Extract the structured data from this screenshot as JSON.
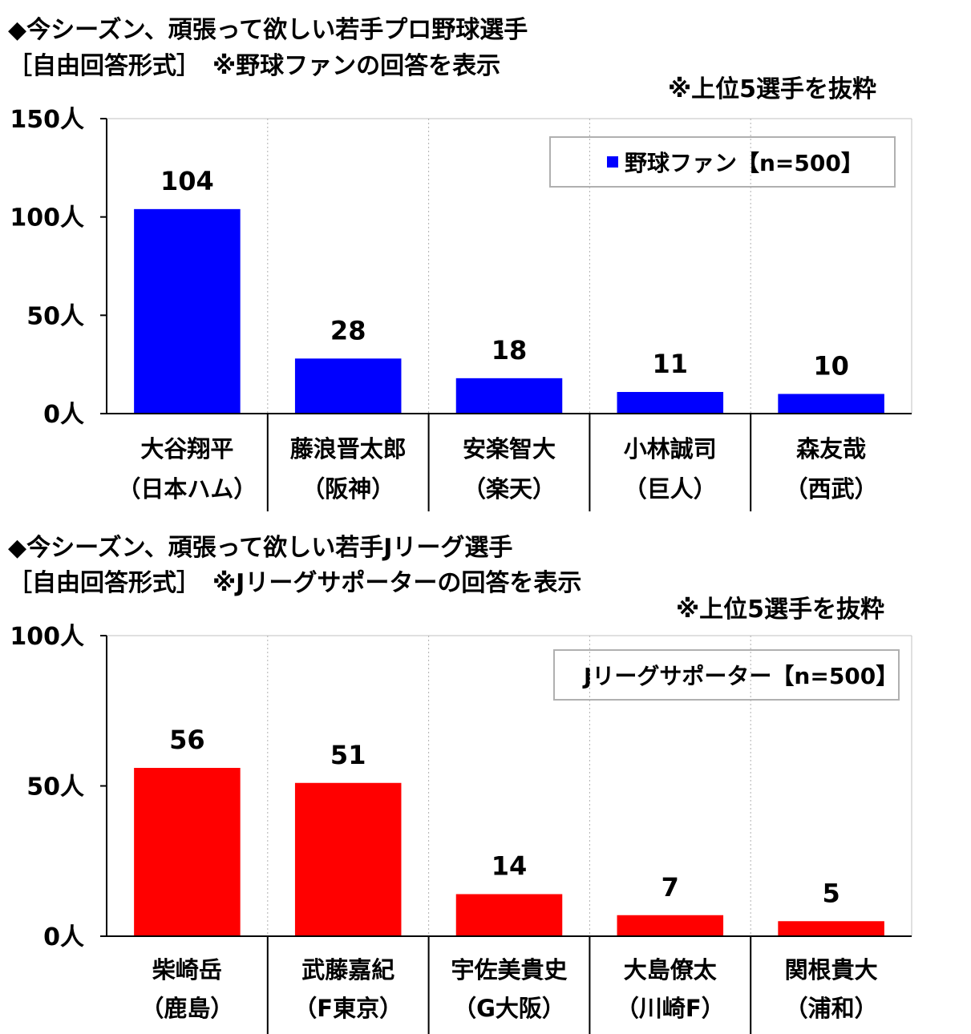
{
  "chart_data": [
    {
      "type": "bar",
      "title": "◆今シーズン、頑張って欲しい若手プロ野球選手",
      "subtitle": "［自由回答形式］　※野球ファンの回答を表示",
      "note": "※上位5選手を抜粋",
      "unit": "人",
      "ylim": [
        0,
        150
      ],
      "yticks": [
        0,
        50,
        100,
        150
      ],
      "ytick_labels": [
        "0人",
        "50人",
        "100人",
        "150人"
      ],
      "grid": true,
      "legend_position": "top-right",
      "categories": [
        "大谷翔平",
        "藤浪晋太郎",
        "安楽智大",
        "小林誠司",
        "森友哉"
      ],
      "category_teams": [
        "（日本ハム）",
        "（阪神）",
        "（楽天）",
        "（巨人）",
        "（西武）"
      ],
      "series": [
        {
          "name": "野球ファン【n=500】",
          "color": "#0000ff",
          "values": [
            104,
            28,
            18,
            11,
            10
          ]
        }
      ]
    },
    {
      "type": "bar",
      "title": "◆今シーズン、頑張って欲しい若手Jリーグ選手",
      "subtitle": "［自由回答形式］　※Jリーグサポーターの回答を表示",
      "note": "※上位5選手を抜粋",
      "unit": "人",
      "ylim": [
        0,
        100
      ],
      "yticks": [
        0,
        50,
        100
      ],
      "ytick_labels": [
        "0人",
        "50人",
        "100人"
      ],
      "grid": true,
      "legend_position": "top-right",
      "categories": [
        "柴崎岳",
        "武藤嘉紀",
        "宇佐美貴史",
        "大島僚太",
        "関根貴大"
      ],
      "category_teams": [
        "（鹿島）",
        "（F東京）",
        "（G大阪）",
        "（川崎F）",
        "（浦和）"
      ],
      "series": [
        {
          "name": "Jリーグサポーター【n=500】",
          "color": "#ff0000",
          "values": [
            56,
            51,
            14,
            7,
            5
          ]
        }
      ]
    }
  ]
}
